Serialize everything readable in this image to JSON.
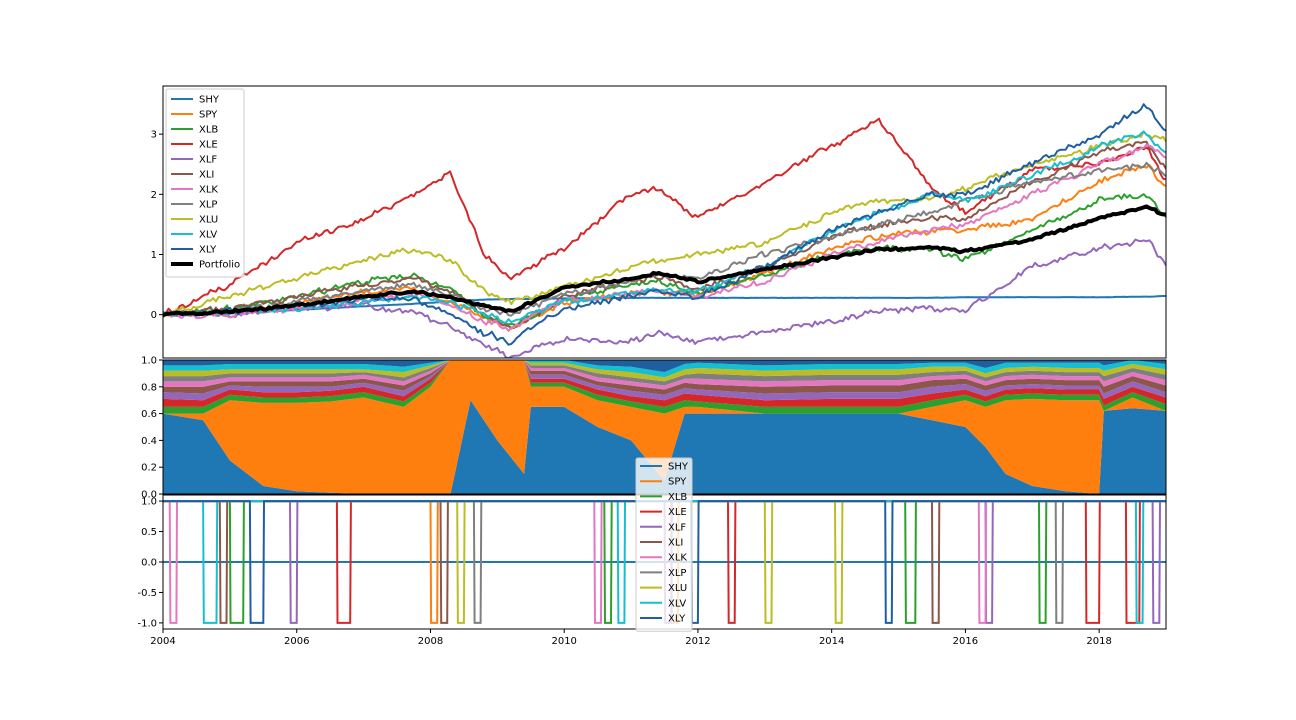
{
  "chart_data": [
    {
      "type": "line",
      "panel": "cumulative-returns",
      "x": [
        2004.0,
        2005.0,
        2006.0,
        2007.0,
        2007.75,
        2008.3,
        2008.8,
        2009.2,
        2010.0,
        2011.0,
        2011.4,
        2012.0,
        2013.0,
        2014.0,
        2014.7,
        2015.5,
        2016.0,
        2017.0,
        2018.0,
        2018.7,
        2019.0
      ],
      "xlim": [
        2004,
        2019
      ],
      "xticks": [
        "2004",
        "2006",
        "2008",
        "2010",
        "2012",
        "2014",
        "2016",
        "2018"
      ],
      "ylim": [
        -0.72,
        3.8
      ],
      "yticks": [
        "0",
        "1",
        "2",
        "3"
      ],
      "grid": false,
      "legend_position": "upper-left",
      "series": [
        {
          "name": "SHY",
          "color": "#1f77b4",
          "width": 2,
          "values": [
            0.0,
            0.02,
            0.08,
            0.14,
            0.18,
            0.22,
            0.25,
            0.26,
            0.27,
            0.28,
            0.28,
            0.28,
            0.28,
            0.28,
            0.28,
            0.28,
            0.29,
            0.29,
            0.29,
            0.3,
            0.31
          ]
        },
        {
          "name": "SPY",
          "color": "#ff7f0e",
          "width": 2,
          "values": [
            0.0,
            0.05,
            0.2,
            0.38,
            0.45,
            0.2,
            -0.05,
            -0.22,
            0.18,
            0.35,
            0.4,
            0.3,
            0.7,
            1.1,
            1.3,
            1.4,
            1.4,
            1.6,
            2.2,
            2.5,
            2.1
          ]
        },
        {
          "name": "XLB",
          "color": "#2ca02c",
          "width": 2,
          "values": [
            0.0,
            0.1,
            0.3,
            0.55,
            0.65,
            0.4,
            0.0,
            -0.2,
            0.25,
            0.5,
            0.55,
            0.35,
            0.65,
            1.0,
            1.1,
            1.1,
            0.9,
            1.4,
            1.9,
            2.0,
            1.6
          ]
        },
        {
          "name": "XLE",
          "color": "#d62728",
          "width": 2,
          "values": [
            0.0,
            0.5,
            1.2,
            1.6,
            2.0,
            2.35,
            1.0,
            0.6,
            1.1,
            2.0,
            2.1,
            1.6,
            2.2,
            2.8,
            3.25,
            2.1,
            1.7,
            2.4,
            2.5,
            2.8,
            2.2
          ]
        },
        {
          "name": "XLF",
          "color": "#9467bd",
          "width": 2,
          "values": [
            0.0,
            0.0,
            0.1,
            0.15,
            0.05,
            -0.2,
            -0.5,
            -0.7,
            -0.4,
            -0.45,
            -0.3,
            -0.45,
            -0.3,
            -0.1,
            0.05,
            0.1,
            0.05,
            0.8,
            1.1,
            1.25,
            0.85
          ]
        },
        {
          "name": "XLI",
          "color": "#8c564b",
          "width": 2,
          "values": [
            0.0,
            0.1,
            0.3,
            0.5,
            0.6,
            0.4,
            0.0,
            -0.25,
            0.3,
            0.55,
            0.65,
            0.4,
            0.8,
            1.3,
            1.5,
            1.6,
            1.6,
            2.2,
            2.7,
            2.9,
            2.4
          ]
        },
        {
          "name": "XLK",
          "color": "#e377c2",
          "width": 2,
          "values": [
            0.0,
            0.0,
            0.1,
            0.25,
            0.35,
            0.15,
            -0.1,
            -0.25,
            0.25,
            0.35,
            0.4,
            0.3,
            0.55,
            1.0,
            1.2,
            1.4,
            1.5,
            2.0,
            2.5,
            2.8,
            2.6
          ]
        },
        {
          "name": "XLP",
          "color": "#7f7f7f",
          "width": 2,
          "values": [
            0.0,
            0.05,
            0.2,
            0.4,
            0.5,
            0.35,
            0.1,
            0.0,
            0.35,
            0.55,
            0.65,
            0.6,
            1.0,
            1.3,
            1.5,
            1.7,
            1.9,
            2.2,
            2.4,
            2.5,
            2.3
          ]
        },
        {
          "name": "XLU",
          "color": "#bcbd22",
          "width": 2,
          "values": [
            0.0,
            0.3,
            0.6,
            0.9,
            1.1,
            0.9,
            0.4,
            0.2,
            0.45,
            0.8,
            0.9,
            1.0,
            1.2,
            1.7,
            1.9,
            1.9,
            2.1,
            2.5,
            2.8,
            3.0,
            2.9
          ]
        },
        {
          "name": "XLV",
          "color": "#17becf",
          "width": 2,
          "values": [
            0.0,
            0.05,
            0.1,
            0.2,
            0.3,
            0.2,
            0.0,
            -0.1,
            0.2,
            0.35,
            0.4,
            0.4,
            0.8,
            1.4,
            1.7,
            2.0,
            1.9,
            2.3,
            2.8,
            3.0,
            2.7
          ]
        },
        {
          "name": "XLY",
          "color": "#1f5fa0",
          "width": 2,
          "values": [
            0.0,
            0.05,
            0.15,
            0.25,
            0.25,
            0.0,
            -0.3,
            -0.45,
            0.1,
            0.3,
            0.4,
            0.3,
            0.8,
            1.4,
            1.7,
            2.0,
            2.0,
            2.5,
            3.0,
            3.5,
            3.0
          ]
        },
        {
          "name": "Portfolio",
          "color": "#000000",
          "width": 4,
          "values": [
            0.0,
            0.05,
            0.15,
            0.3,
            0.38,
            0.28,
            0.15,
            0.05,
            0.45,
            0.6,
            0.7,
            0.55,
            0.75,
            0.95,
            1.08,
            1.12,
            1.05,
            1.25,
            1.6,
            1.8,
            1.65
          ]
        }
      ]
    },
    {
      "type": "area",
      "panel": "weights",
      "stacked": true,
      "x": [
        2004.0,
        2004.6,
        2005.0,
        2005.5,
        2006.0,
        2006.5,
        2007.0,
        2007.6,
        2008.0,
        2008.3,
        2008.6,
        2009.0,
        2009.4,
        2009.5,
        2010.0,
        2010.5,
        2011.0,
        2011.5,
        2011.8,
        2012.0,
        2013.0,
        2014.0,
        2015.0,
        2015.5,
        2016.0,
        2016.3,
        2016.6,
        2017.0,
        2017.5,
        2018.0,
        2018.07,
        2018.5,
        2019.0
      ],
      "xlim": [
        2004,
        2019
      ],
      "ylim": [
        0,
        1
      ],
      "yticks": [
        "0.0",
        "0.2",
        "0.4",
        "0.6",
        "0.8",
        "1.0"
      ],
      "series": [
        {
          "name": "SHY",
          "color": "#1f77b4",
          "values": [
            0.6,
            0.55,
            0.25,
            0.06,
            0.02,
            0.01,
            0.0,
            0.0,
            0.0,
            0.0,
            0.7,
            0.4,
            0.15,
            0.65,
            0.65,
            0.5,
            0.4,
            0.1,
            0.6,
            0.6,
            0.6,
            0.6,
            0.6,
            0.55,
            0.5,
            0.35,
            0.15,
            0.06,
            0.02,
            0.0,
            0.62,
            0.64,
            0.62
          ]
        },
        {
          "name": "SPY",
          "color": "#ff7f0e",
          "values": [
            0.0,
            0.05,
            0.45,
            0.62,
            0.66,
            0.68,
            0.72,
            0.65,
            0.8,
            1.0,
            0.3,
            0.6,
            0.85,
            0.15,
            0.15,
            0.2,
            0.25,
            0.5,
            0.05,
            0.05,
            0.0,
            0.0,
            0.0,
            0.1,
            0.2,
            0.3,
            0.55,
            0.65,
            0.68,
            0.7,
            0.0,
            0.08,
            0.0
          ]
        },
        {
          "name": "XLB",
          "color": "#2ca02c",
          "values": [
            0.05,
            0.05,
            0.04,
            0.04,
            0.04,
            0.04,
            0.04,
            0.04,
            0.03,
            0.0,
            0.0,
            0.0,
            0.0,
            0.03,
            0.03,
            0.04,
            0.04,
            0.05,
            0.05,
            0.04,
            0.05,
            0.05,
            0.05,
            0.05,
            0.04,
            0.04,
            0.04,
            0.04,
            0.04,
            0.04,
            0.04,
            0.04,
            0.05
          ]
        },
        {
          "name": "XLE",
          "color": "#d62728",
          "values": [
            0.06,
            0.05,
            0.04,
            0.04,
            0.04,
            0.04,
            0.04,
            0.04,
            0.03,
            0.0,
            0.0,
            0.0,
            0.0,
            0.03,
            0.03,
            0.04,
            0.04,
            0.05,
            0.05,
            0.05,
            0.05,
            0.06,
            0.06,
            0.05,
            0.04,
            0.04,
            0.04,
            0.04,
            0.04,
            0.04,
            0.05,
            0.04,
            0.05
          ]
        },
        {
          "name": "XLF",
          "color": "#9467bd",
          "values": [
            0.05,
            0.05,
            0.03,
            0.04,
            0.04,
            0.03,
            0.03,
            0.04,
            0.02,
            0.0,
            0.0,
            0.0,
            0.0,
            0.03,
            0.03,
            0.03,
            0.04,
            0.04,
            0.04,
            0.04,
            0.05,
            0.05,
            0.05,
            0.05,
            0.04,
            0.04,
            0.03,
            0.03,
            0.03,
            0.03,
            0.04,
            0.04,
            0.04
          ]
        },
        {
          "name": "XLI",
          "color": "#8c564b",
          "values": [
            0.04,
            0.05,
            0.03,
            0.04,
            0.04,
            0.04,
            0.03,
            0.04,
            0.02,
            0.0,
            0.0,
            0.0,
            0.0,
            0.03,
            0.03,
            0.03,
            0.04,
            0.04,
            0.04,
            0.04,
            0.05,
            0.05,
            0.05,
            0.05,
            0.04,
            0.04,
            0.04,
            0.04,
            0.04,
            0.04,
            0.05,
            0.04,
            0.05
          ]
        },
        {
          "name": "XLK",
          "color": "#e377c2",
          "values": [
            0.04,
            0.04,
            0.03,
            0.03,
            0.03,
            0.03,
            0.03,
            0.03,
            0.02,
            0.0,
            0.0,
            0.0,
            0.0,
            0.02,
            0.02,
            0.03,
            0.03,
            0.03,
            0.03,
            0.04,
            0.04,
            0.04,
            0.04,
            0.03,
            0.03,
            0.03,
            0.03,
            0.03,
            0.03,
            0.03,
            0.04,
            0.03,
            0.04
          ]
        },
        {
          "name": "XLP",
          "color": "#7f7f7f",
          "values": [
            0.04,
            0.04,
            0.03,
            0.03,
            0.03,
            0.03,
            0.02,
            0.03,
            0.02,
            0.0,
            0.0,
            0.0,
            0.0,
            0.02,
            0.02,
            0.03,
            0.03,
            0.03,
            0.03,
            0.04,
            0.04,
            0.04,
            0.04,
            0.03,
            0.03,
            0.03,
            0.03,
            0.03,
            0.03,
            0.03,
            0.04,
            0.03,
            0.04
          ]
        },
        {
          "name": "XLU",
          "color": "#bcbd22",
          "values": [
            0.04,
            0.04,
            0.03,
            0.03,
            0.03,
            0.03,
            0.02,
            0.04,
            0.02,
            0.0,
            0.0,
            0.0,
            0.0,
            0.02,
            0.02,
            0.03,
            0.04,
            0.03,
            0.04,
            0.04,
            0.04,
            0.04,
            0.04,
            0.04,
            0.03,
            0.03,
            0.03,
            0.03,
            0.03,
            0.03,
            0.04,
            0.03,
            0.04
          ]
        },
        {
          "name": "XLV",
          "color": "#17becf",
          "values": [
            0.04,
            0.04,
            0.04,
            0.04,
            0.04,
            0.04,
            0.04,
            0.04,
            0.02,
            0.0,
            0.0,
            0.0,
            0.0,
            0.02,
            0.02,
            0.03,
            0.04,
            0.04,
            0.04,
            0.04,
            0.04,
            0.04,
            0.04,
            0.03,
            0.03,
            0.04,
            0.04,
            0.03,
            0.04,
            0.04,
            0.04,
            0.03,
            0.04
          ]
        },
        {
          "name": "XLY",
          "color": "#1f5fa0",
          "values": [
            0.04,
            0.04,
            0.03,
            0.03,
            0.03,
            0.03,
            0.03,
            0.01,
            0.02,
            0.0,
            0.0,
            0.0,
            0.0,
            0.02,
            0.02,
            0.04,
            0.01,
            0.04,
            0.03,
            0.02,
            0.04,
            0.03,
            0.03,
            0.02,
            0.05,
            0.03,
            0.02,
            0.02,
            0.02,
            0.02,
            0.04,
            0.0,
            0.03
          ]
        }
      ]
    },
    {
      "type": "line",
      "panel": "signals",
      "xlim": [
        2004,
        2019
      ],
      "ylim": [
        -1.1,
        1.1
      ],
      "yticks": [
        "1.0",
        "0.5",
        "0.0",
        "-0.5",
        "-1.0"
      ],
      "xticks": [
        "2004",
        "2006",
        "2008",
        "2010",
        "2012",
        "2014",
        "2016",
        "2018"
      ],
      "series": [
        {
          "name": "SHY",
          "color": "#1f77b4",
          "values": [
            0,
            0
          ]
        },
        {
          "name": "SPY",
          "color": "#ff7f0e",
          "segments": [
            [
              2008.0,
              2008.1
            ],
            [
              2011.6,
              2011.7
            ]
          ]
        },
        {
          "name": "XLB",
          "color": "#2ca02c",
          "segments": [
            [
              2005.0,
              2005.2
            ],
            [
              2010.6,
              2010.7
            ],
            [
              2015.1,
              2015.25
            ],
            [
              2017.1,
              2017.2
            ]
          ]
        },
        {
          "name": "XLE",
          "color": "#d62728",
          "segments": [
            [
              2006.6,
              2006.8
            ],
            [
              2012.45,
              2012.55
            ],
            [
              2017.8,
              2018.0
            ],
            [
              2018.4,
              2018.6
            ]
          ]
        },
        {
          "name": "XLF",
          "color": "#9467bd",
          "segments": [
            [
              2005.9,
              2006.0
            ],
            [
              2011.5,
              2011.6
            ],
            [
              2016.3,
              2016.4
            ],
            [
              2018.8,
              2018.9
            ]
          ]
        },
        {
          "name": "XLI",
          "color": "#8c564b",
          "segments": [
            [
              2004.85,
              2004.95
            ],
            [
              2008.15,
              2008.25
            ],
            [
              2015.5,
              2015.6
            ]
          ]
        },
        {
          "name": "XLK",
          "color": "#e377c2",
          "segments": [
            [
              2004.1,
              2004.2
            ],
            [
              2010.45,
              2010.55
            ],
            [
              2016.2,
              2016.3
            ]
          ]
        },
        {
          "name": "XLP",
          "color": "#7f7f7f",
          "segments": [
            [
              2008.65,
              2008.75
            ],
            [
              2017.35,
              2017.45
            ]
          ]
        },
        {
          "name": "XLU",
          "color": "#bcbd22",
          "segments": [
            [
              2008.4,
              2008.5
            ],
            [
              2013.0,
              2013.1
            ],
            [
              2014.05,
              2014.15
            ]
          ]
        },
        {
          "name": "XLV",
          "color": "#17becf",
          "segments": [
            [
              2004.6,
              2004.8
            ],
            [
              2010.8,
              2010.9
            ],
            [
              2018.55,
              2018.65
            ]
          ]
        },
        {
          "name": "XLY",
          "color": "#1f5fa0",
          "segments": [
            [
              2005.3,
              2005.5
            ],
            [
              2011.9,
              2012.0
            ],
            [
              2014.8,
              2014.9
            ]
          ]
        }
      ]
    }
  ]
}
